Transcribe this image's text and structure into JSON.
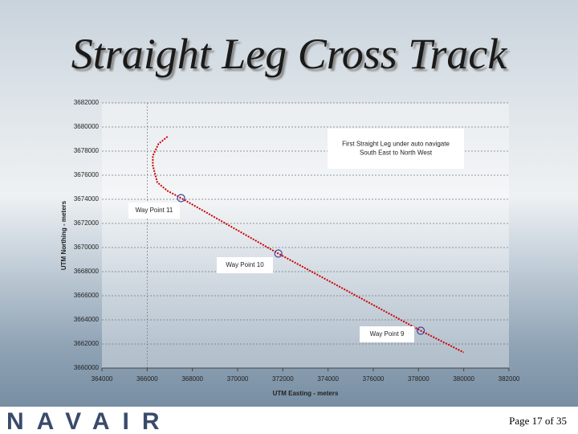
{
  "slide": {
    "title": "Straight Leg Cross Track",
    "logo": "NAVAIR",
    "page": "Page 17 of 35"
  },
  "chart_data": {
    "type": "scatter",
    "xlabel": "UTM Easting - meters",
    "ylabel": "UTM Northing - meters",
    "xlim": [
      364000,
      382000
    ],
    "xticks": [
      364000,
      366000,
      368000,
      370000,
      372000,
      374000,
      376000,
      378000,
      380000,
      382000
    ],
    "ylim": [
      3660000,
      3682000
    ],
    "yticks": [
      3660000,
      3662000,
      3664000,
      3666000,
      3668000,
      3670000,
      3672000,
      3674000,
      3676000,
      3678000,
      3680000,
      3682000
    ],
    "grid": true,
    "series": [
      {
        "color": "#cc0000",
        "style": "dotted-line",
        "x": [
          366900,
          366500,
          366250,
          366250,
          366450,
          366900,
          367500,
          371800,
          378100,
          380000
        ],
        "values": [
          3679200,
          3678600,
          3677600,
          3676800,
          3675400,
          3674700,
          3674100,
          3669500,
          3663100,
          3661300
        ]
      },
      {
        "color": "#4040a0",
        "style": "circle",
        "x": [
          367500,
          371800,
          378100
        ],
        "values": [
          3674100,
          3669500,
          3663100
        ]
      }
    ],
    "annotations": [
      {
        "lines": [
          "First Straight Leg under auto navigate",
          "South East to North West"
        ]
      },
      {
        "lines": [
          "Way Point 11"
        ]
      },
      {
        "lines": [
          "Way Point 10"
        ]
      },
      {
        "lines": [
          "Way Point 9"
        ]
      }
    ]
  }
}
